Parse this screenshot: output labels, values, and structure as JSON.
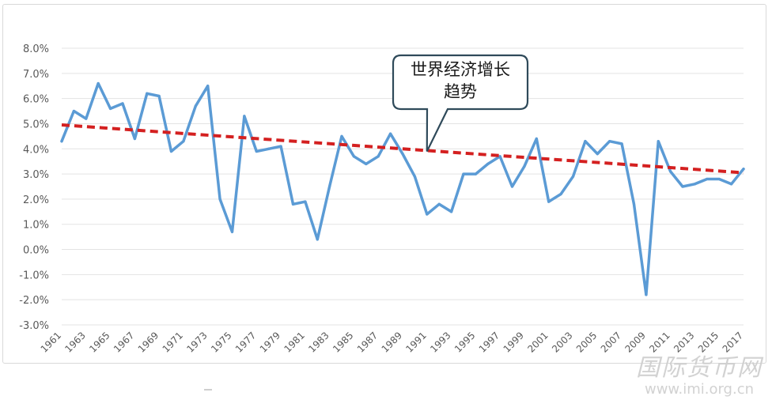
{
  "chart_data": {
    "type": "line",
    "title": "",
    "xlabel": "",
    "ylabel": "",
    "ylim": [
      -3.0,
      8.0
    ],
    "y_ticks": [
      "8.0%",
      "7.0%",
      "6.0%",
      "5.0%",
      "4.0%",
      "3.0%",
      "2.0%",
      "1.0%",
      "0.0%",
      "-1.0%",
      "-2.0%",
      "-3.0%"
    ],
    "y_tick_values": [
      8,
      7,
      6,
      5,
      4,
      3,
      2,
      1,
      0,
      -1,
      -2,
      -3
    ],
    "x_ticks": [
      "1961",
      "1963",
      "1965",
      "1967",
      "1969",
      "1971",
      "1973",
      "1975",
      "1977",
      "1979",
      "1981",
      "1983",
      "1985",
      "1987",
      "1989",
      "1991",
      "1993",
      "1995",
      "1997",
      "1999",
      "2001",
      "2003",
      "2005",
      "2007",
      "2009",
      "2011",
      "2013",
      "2015",
      "2017"
    ],
    "grid": "horizontal",
    "series": [
      {
        "color": "#5b9bd5",
        "x": [
          1961,
          1962,
          1963,
          1964,
          1965,
          1966,
          1967,
          1968,
          1969,
          1970,
          1971,
          1972,
          1973,
          1974,
          1975,
          1976,
          1977,
          1978,
          1979,
          1980,
          1981,
          1982,
          1983,
          1984,
          1985,
          1986,
          1987,
          1988,
          1989,
          1990,
          1991,
          1992,
          1993,
          1994,
          1995,
          1996,
          1997,
          1998,
          1999,
          2000,
          2001,
          2002,
          2003,
          2004,
          2005,
          2006,
          2007,
          2008,
          2009,
          2010,
          2011,
          2012,
          2013,
          2014,
          2015,
          2016,
          2017
        ],
        "values": [
          4.3,
          5.5,
          5.2,
          6.6,
          5.6,
          5.8,
          4.4,
          6.2,
          6.1,
          3.9,
          4.3,
          5.7,
          6.5,
          2.0,
          0.7,
          5.3,
          3.9,
          4.0,
          4.1,
          1.8,
          1.9,
          0.4,
          2.5,
          4.5,
          3.7,
          3.4,
          3.7,
          4.6,
          3.8,
          2.9,
          1.4,
          1.8,
          1.5,
          3.0,
          3.0,
          3.4,
          3.7,
          2.5,
          3.3,
          4.4,
          1.9,
          2.2,
          2.9,
          4.3,
          3.8,
          4.3,
          4.2,
          1.8,
          -1.8,
          4.3,
          3.1,
          2.5,
          2.6,
          2.8,
          2.8,
          2.6,
          3.2
        ]
      }
    ],
    "trendline": {
      "color": "#d42020",
      "style": "dashed",
      "x": [
        1961,
        2017
      ],
      "values": [
        4.95,
        3.05
      ]
    },
    "annotation": {
      "lines": [
        "世界经济增长",
        "趋势"
      ],
      "points_to_x": 1991,
      "points_to_y": 3.9
    }
  },
  "watermark": {
    "text": "国际货币网",
    "url": "www.imi.org.cn"
  }
}
